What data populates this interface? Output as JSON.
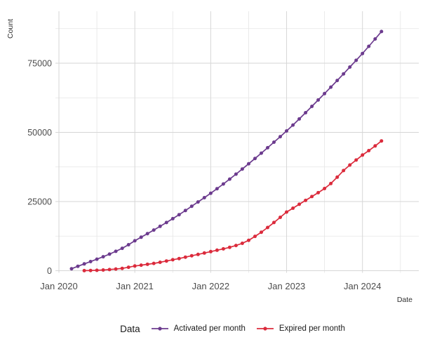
{
  "chart_data": {
    "type": "line",
    "title": "",
    "xlabel": "Date",
    "ylabel": "Count",
    "legend_title": "Data",
    "legend_position": "bottom",
    "grid": true,
    "grid_major_color": "#d6d6d6",
    "grid_minor_color": "#e5e5e5",
    "background_color": "#ffffff",
    "ylim": [
      0,
      87500
    ],
    "y_ticks": [
      0,
      25000,
      50000,
      75000
    ],
    "y_minor_gridlines": [
      12500,
      37500,
      62500,
      87500
    ],
    "x_ticks": [
      {
        "month": "2020-01",
        "label": "Jan 2020"
      },
      {
        "month": "2021-01",
        "label": "Jan 2021"
      },
      {
        "month": "2022-01",
        "label": "Jan 2022"
      },
      {
        "month": "2023-01",
        "label": "Jan 2023"
      },
      {
        "month": "2024-01",
        "label": "Jan 2024"
      }
    ],
    "series": [
      {
        "name": "Activated per month",
        "color": "#6c3b8e",
        "x": [
          "2020-03",
          "2020-04",
          "2020-05",
          "2020-06",
          "2020-07",
          "2020-08",
          "2020-09",
          "2020-10",
          "2020-11",
          "2020-12",
          "2021-01",
          "2021-02",
          "2021-03",
          "2021-04",
          "2021-05",
          "2021-06",
          "2021-07",
          "2021-08",
          "2021-09",
          "2021-10",
          "2021-11",
          "2021-12",
          "2022-01",
          "2022-02",
          "2022-03",
          "2022-04",
          "2022-05",
          "2022-06",
          "2022-07",
          "2022-08",
          "2022-09",
          "2022-10",
          "2022-11",
          "2022-12",
          "2023-01",
          "2023-02",
          "2023-03",
          "2023-04",
          "2023-05",
          "2023-06",
          "2023-07",
          "2023-08",
          "2023-09",
          "2023-10",
          "2023-11",
          "2023-12",
          "2024-01",
          "2024-02",
          "2024-03",
          "2024-04"
        ],
        "values": [
          700,
          1600,
          2450,
          3300,
          4150,
          5050,
          6000,
          7000,
          8100,
          9400,
          10800,
          12100,
          13400,
          14700,
          16050,
          17400,
          18800,
          20250,
          21750,
          23300,
          24850,
          26400,
          28000,
          29650,
          31350,
          33100,
          34900,
          36750,
          38650,
          40550,
          42500,
          44450,
          46450,
          48450,
          50500,
          52650,
          54850,
          57100,
          59400,
          61700,
          64000,
          66350,
          68750,
          71150,
          73600,
          76050,
          78500,
          81100,
          83750,
          86450
        ]
      },
      {
        "name": "Expired per month",
        "color": "#db2b3c",
        "x": [
          "2020-05",
          "2020-06",
          "2020-07",
          "2020-08",
          "2020-09",
          "2020-10",
          "2020-11",
          "2020-12",
          "2021-01",
          "2021-02",
          "2021-03",
          "2021-04",
          "2021-05",
          "2021-06",
          "2021-07",
          "2021-08",
          "2021-09",
          "2021-10",
          "2021-11",
          "2021-12",
          "2022-01",
          "2022-02",
          "2022-03",
          "2022-04",
          "2022-05",
          "2022-06",
          "2022-07",
          "2022-08",
          "2022-09",
          "2022-10",
          "2022-11",
          "2022-12",
          "2023-01",
          "2023-02",
          "2023-03",
          "2023-04",
          "2023-05",
          "2023-06",
          "2023-07",
          "2023-08",
          "2023-09",
          "2023-10",
          "2023-11",
          "2023-12",
          "2024-01",
          "2024-02",
          "2024-03",
          "2024-04"
        ],
        "values": [
          30,
          80,
          150,
          250,
          400,
          600,
          850,
          1250,
          1700,
          2000,
          2300,
          2650,
          3050,
          3500,
          3950,
          4400,
          4900,
          5400,
          5900,
          6400,
          6900,
          7400,
          7900,
          8450,
          9100,
          9900,
          11000,
          12400,
          13900,
          15600,
          17400,
          19300,
          21200,
          22600,
          24000,
          25400,
          26800,
          28200,
          29700,
          31500,
          33800,
          36200,
          38200,
          40000,
          41800,
          43400,
          45100,
          46900
        ]
      }
    ]
  }
}
